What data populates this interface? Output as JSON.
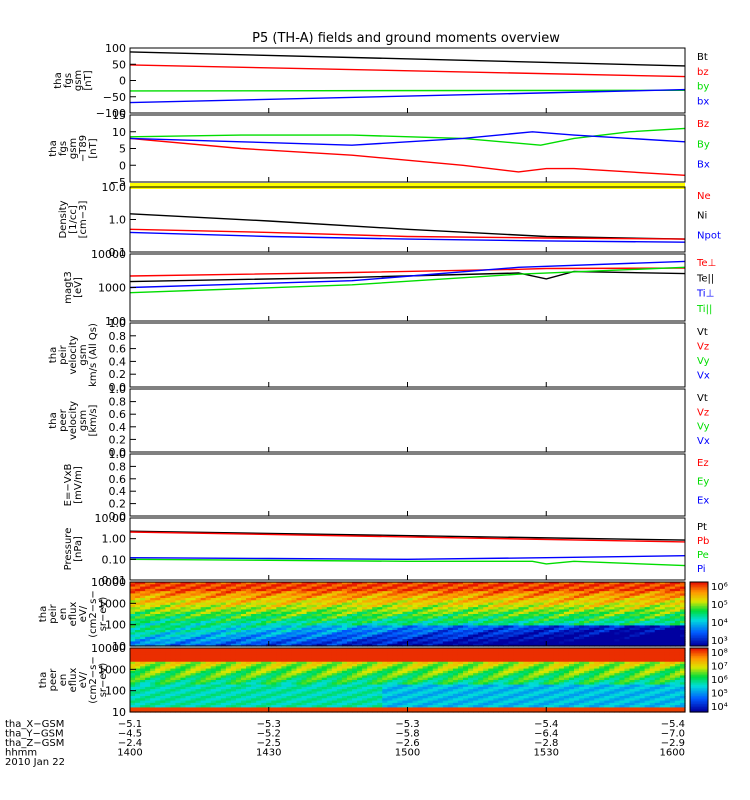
{
  "title": "P5 (TH-A) fields and ground moments overview",
  "colors": {
    "black": "#000000",
    "red": "#ff0000",
    "green": "#00dd00",
    "blue": "#0000ff",
    "yellow": "#ffff00"
  },
  "chart_data": [
    {
      "type": "line",
      "ylabel": [
        "tha",
        "fgs",
        "gsm",
        "[nT]"
      ],
      "yticks": [
        "100",
        "50",
        "0",
        "−50",
        "−100"
      ],
      "ylim": [
        -100,
        100
      ],
      "legend": [
        {
          "name": "Bt",
          "color": "black"
        },
        {
          "name": "bz",
          "color": "red"
        },
        {
          "name": "by",
          "color": "green"
        },
        {
          "name": "bx",
          "color": "blue"
        }
      ],
      "series": [
        {
          "name": "Bt",
          "color": "black",
          "x": [
            1400,
            1600
          ],
          "y": [
            88,
            45
          ]
        },
        {
          "name": "bz",
          "color": "red",
          "x": [
            1400,
            1600
          ],
          "y": [
            48,
            12
          ]
        },
        {
          "name": "by",
          "color": "green",
          "x": [
            1400,
            1600
          ],
          "y": [
            -32,
            -30
          ]
        },
        {
          "name": "bx",
          "color": "blue",
          "x": [
            1400,
            1600
          ],
          "y": [
            -68,
            -28
          ]
        }
      ]
    },
    {
      "type": "line",
      "ylabel": [
        "tha",
        "fgs",
        "gsm",
        "−T89",
        "[nT]"
      ],
      "yticks": [
        "15",
        "10",
        "5",
        "0",
        "−5"
      ],
      "ylim": [
        -5,
        15
      ],
      "legend": [
        {
          "name": "Bz",
          "color": "red"
        },
        {
          "name": "By",
          "color": "green"
        },
        {
          "name": "Bx",
          "color": "blue"
        }
      ],
      "series": [
        {
          "name": "Bz",
          "color": "red",
          "x": [
            1400,
            1440,
            1480,
            1520,
            1540,
            1550,
            1560,
            1600
          ],
          "y": [
            8,
            5,
            3,
            0,
            -2,
            -1,
            -1,
            -3
          ]
        },
        {
          "name": "By",
          "color": "green",
          "x": [
            1400,
            1440,
            1480,
            1520,
            1548,
            1560,
            1580,
            1600
          ],
          "y": [
            8.5,
            9,
            9,
            8,
            6,
            8,
            10,
            11
          ]
        },
        {
          "name": "Bx",
          "color": "blue",
          "x": [
            1400,
            1440,
            1480,
            1520,
            1545,
            1560,
            1580,
            1600
          ],
          "y": [
            8,
            7,
            6,
            8,
            10,
            9,
            8,
            7
          ]
        }
      ]
    },
    {
      "type": "line",
      "ylabel": [
        "Density",
        "[1/cc]",
        "[cm−3]"
      ],
      "yticks": [
        "10.0",
        "1.0",
        "0.1"
      ],
      "ylim": [
        0.1,
        10
      ],
      "yscale": "log",
      "legend": [
        {
          "name": "Ne",
          "color": "red"
        },
        {
          "name": "Ni",
          "color": "black"
        },
        {
          "name": "Npot",
          "color": "blue"
        }
      ],
      "series": [
        {
          "name": "Ni",
          "color": "black",
          "x": [
            1400,
            1450,
            1500,
            1550,
            1600
          ],
          "y": [
            1.5,
            0.9,
            0.5,
            0.3,
            0.25
          ]
        },
        {
          "name": "Ne",
          "color": "red",
          "x": [
            1400,
            1450,
            1500,
            1550,
            1600
          ],
          "y": [
            0.5,
            0.4,
            0.3,
            0.27,
            0.25
          ]
        },
        {
          "name": "Npot",
          "color": "blue",
          "x": [
            1400,
            1450,
            1500,
            1550,
            1600
          ],
          "y": [
            0.4,
            0.3,
            0.25,
            0.22,
            0.2
          ]
        }
      ]
    },
    {
      "type": "line",
      "ylabel": [
        "magt3",
        "[eV]"
      ],
      "yticks": [
        "10000",
        "1000",
        "100"
      ],
      "ylim": [
        100,
        10000
      ],
      "yscale": "log",
      "legend": [
        {
          "name": "Te⊥",
          "color": "red"
        },
        {
          "name": "Te||",
          "color": "black"
        },
        {
          "name": "Ti⊥",
          "color": "blue"
        },
        {
          "name": "Ti||",
          "color": "green"
        }
      ],
      "series": [
        {
          "name": "Te⊥",
          "color": "red",
          "x": [
            1400,
            1480,
            1540,
            1550,
            1600
          ],
          "y": [
            2200,
            2800,
            3500,
            3700,
            3800
          ]
        },
        {
          "name": "Te||",
          "color": "black",
          "x": [
            1400,
            1480,
            1540,
            1550,
            1560,
            1600
          ],
          "y": [
            1500,
            2000,
            2700,
            1800,
            3000,
            2600
          ]
        },
        {
          "name": "Ti⊥",
          "color": "blue",
          "x": [
            1400,
            1480,
            1540,
            1600
          ],
          "y": [
            1000,
            1600,
            4000,
            6000
          ]
        },
        {
          "name": "Ti||",
          "color": "green",
          "x": [
            1400,
            1480,
            1540,
            1600
          ],
          "y": [
            700,
            1200,
            2500,
            4000
          ]
        }
      ]
    },
    {
      "type": "line",
      "ylabel": [
        "tha",
        "peir",
        "velocity",
        "gsm",
        "km/s (All Qs)"
      ],
      "yticks": [
        "1.0",
        "0.8",
        "0.6",
        "0.4",
        "0.2",
        "0.0"
      ],
      "ylim": [
        0,
        1
      ],
      "legend": [
        {
          "name": "Vt",
          "color": "black"
        },
        {
          "name": "Vz",
          "color": "red"
        },
        {
          "name": "Vy",
          "color": "green"
        },
        {
          "name": "Vx",
          "color": "blue"
        }
      ],
      "series": []
    },
    {
      "type": "line",
      "ylabel": [
        "tha",
        "peer",
        "velocity",
        "gsm",
        "[km/s]"
      ],
      "yticks": [
        "1.0",
        "0.8",
        "0.6",
        "0.4",
        "0.2",
        "0.0"
      ],
      "ylim": [
        0,
        1
      ],
      "legend": [
        {
          "name": "Vt",
          "color": "black"
        },
        {
          "name": "Vz",
          "color": "red"
        },
        {
          "name": "Vy",
          "color": "green"
        },
        {
          "name": "Vx",
          "color": "blue"
        }
      ],
      "series": []
    },
    {
      "type": "line",
      "ylabel": [
        "E=−VxB",
        "[mV/m]"
      ],
      "yticks": [
        "1.0",
        "0.8",
        "0.6",
        "0.4",
        "0.2",
        "0.0"
      ],
      "ylim": [
        0,
        1
      ],
      "legend": [
        {
          "name": "Ez",
          "color": "red"
        },
        {
          "name": "Ey",
          "color": "green"
        },
        {
          "name": "Ex",
          "color": "blue"
        }
      ],
      "series": []
    },
    {
      "type": "line",
      "ylabel": [
        "Pressure",
        "[nPa]"
      ],
      "yticks": [
        "10.00",
        "1.00",
        "0.10",
        "0.01"
      ],
      "ylim": [
        0.01,
        10
      ],
      "yscale": "log",
      "legend": [
        {
          "name": "Pt",
          "color": "black"
        },
        {
          "name": "Pb",
          "color": "red"
        },
        {
          "name": "Pe",
          "color": "green"
        },
        {
          "name": "Pi",
          "color": "blue"
        }
      ],
      "series": [
        {
          "name": "Pt",
          "color": "black",
          "x": [
            1400,
            1600
          ],
          "y": [
            2.3,
            0.85
          ]
        },
        {
          "name": "Pb",
          "color": "red",
          "x": [
            1400,
            1600
          ],
          "y": [
            2.1,
            0.7
          ]
        },
        {
          "name": "Pe",
          "color": "green",
          "x": [
            1400,
            1450,
            1500,
            1545,
            1550,
            1560,
            1600
          ],
          "y": [
            0.1,
            0.09,
            0.08,
            0.08,
            0.06,
            0.08,
            0.05
          ]
        },
        {
          "name": "Pi",
          "color": "blue",
          "x": [
            1400,
            1450,
            1500,
            1550,
            1600
          ],
          "y": [
            0.12,
            0.11,
            0.1,
            0.12,
            0.15
          ]
        }
      ]
    },
    {
      "type": "heatmap",
      "ylabel": [
        "tha",
        "peir",
        "en",
        "eflux",
        "eV/",
        "(cm2−s−",
        "sr−eV)"
      ],
      "yticks": [
        "10000",
        "1000",
        "100",
        "10"
      ],
      "ylim": [
        10,
        20000
      ],
      "yscale": "log",
      "colorbar": [
        "10⁶",
        "10⁵",
        "10⁴",
        "10³"
      ]
    },
    {
      "type": "heatmap",
      "ylabel": [
        "tha",
        "peer",
        "en",
        "eflux",
        "eV/",
        "(cm2−s−",
        "sr−eV)"
      ],
      "yticks": [
        "10000",
        "1000",
        "100",
        "10"
      ],
      "ylim": [
        10,
        20000
      ],
      "yscale": "log",
      "colorbar": [
        "10⁸",
        "10⁷",
        "10⁶",
        "10⁵",
        "10⁴"
      ]
    }
  ],
  "xaxis": {
    "rows": [
      {
        "label": "tha_X−GSM",
        "values": [
          "−5.1",
          "−5.3",
          "−5.3",
          "−5.4",
          "−5.4"
        ]
      },
      {
        "label": "tha_Y−GSM",
        "values": [
          "−4.5",
          "−5.2",
          "−5.8",
          "−6.4",
          "−7.0"
        ]
      },
      {
        "label": "tha_Z−GSM",
        "values": [
          "−2.4",
          "−2.5",
          "−2.6",
          "−2.8",
          "−2.9"
        ]
      },
      {
        "label": "hhmm",
        "values": [
          "1400",
          "1430",
          "1500",
          "1530",
          "1600"
        ]
      }
    ],
    "date": "2010 Jan 22"
  }
}
